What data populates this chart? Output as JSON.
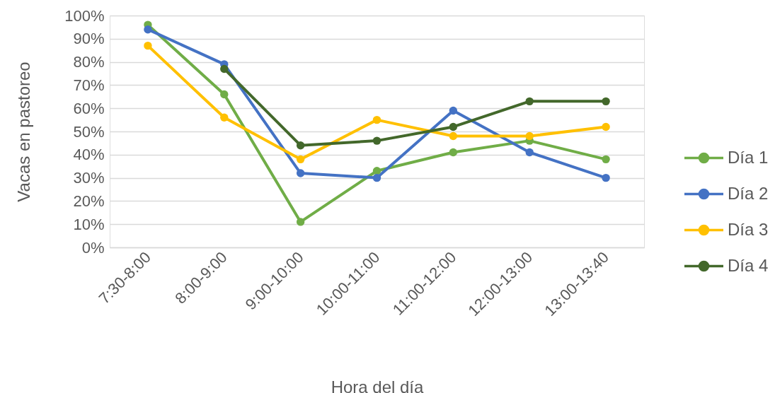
{
  "chart_data": {
    "type": "line",
    "xlabel": "Hora del día",
    "ylabel": "Vacas en pastoreo",
    "categories": [
      "7:30-8:00",
      "8:00-9:00",
      "9:00-10:00",
      "10:00-11:00",
      "11:00-12:00",
      "12:00-13:00",
      "13:00-13:40"
    ],
    "series": [
      {
        "name": "Día 1",
        "color": "#70ad47",
        "values": [
          96,
          66,
          11,
          33,
          41,
          46,
          38
        ]
      },
      {
        "name": "Día 2",
        "color": "#4472c4",
        "values": [
          94,
          79,
          32,
          30,
          59,
          41,
          30
        ]
      },
      {
        "name": "Día 3",
        "color": "#ffc000",
        "values": [
          87,
          56,
          38,
          55,
          48,
          48,
          52
        ]
      },
      {
        "name": "Día 4",
        "color": "#43682b",
        "values": [
          null,
          77,
          44,
          46,
          52,
          63,
          63
        ]
      }
    ],
    "ylim": [
      0,
      100
    ],
    "yticks": [
      {
        "value": 0,
        "label": "0%"
      },
      {
        "value": 10,
        "label": "10%"
      },
      {
        "value": 20,
        "label": "20%"
      },
      {
        "value": 30,
        "label": "30%"
      },
      {
        "value": 40,
        "label": "40%"
      },
      {
        "value": 50,
        "label": "50%"
      },
      {
        "value": 60,
        "label": "60%"
      },
      {
        "value": 70,
        "label": "70%"
      },
      {
        "value": 80,
        "label": "80%"
      },
      {
        "value": 90,
        "label": "90%"
      },
      {
        "value": 100,
        "label": "100%"
      }
    ],
    "grid": "y",
    "legend": "right",
    "marker": "circle",
    "line_style": "solid"
  }
}
